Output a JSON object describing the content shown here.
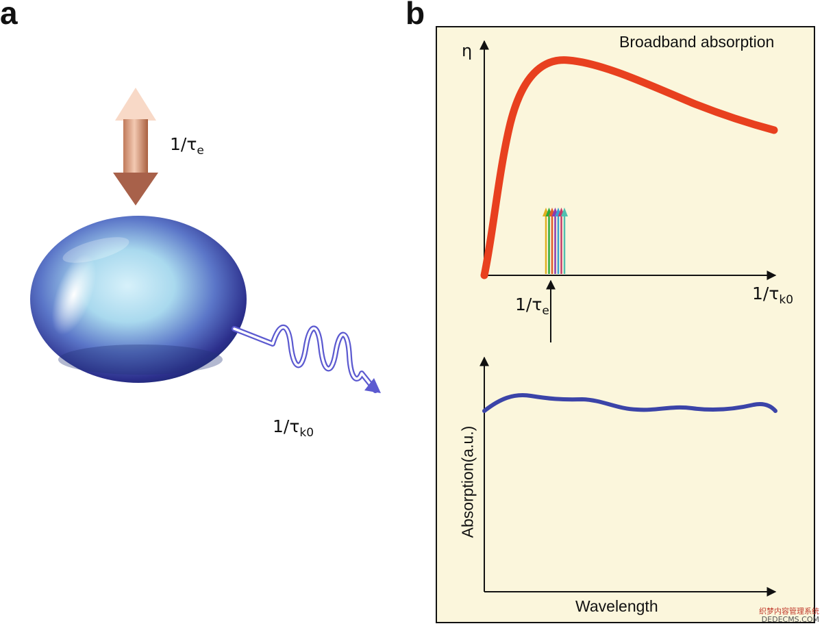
{
  "panel_a": {
    "letter": "a",
    "label_top": {
      "main": "1/τ",
      "sub": "e"
    },
    "label_bottom": {
      "main": "1/τ",
      "sub": "k0"
    },
    "colors": {
      "sphere": "#3a3fa0",
      "arrow": "#c98f73"
    }
  },
  "panel_b": {
    "letter": "b",
    "title": "Broadband absorption",
    "top_chart": {
      "y_label": "η",
      "x_label": {
        "main": "1/τ",
        "sub": "k0"
      },
      "marker_label": {
        "main": "1/τ",
        "sub": "e"
      },
      "curve_color": "#e8401f",
      "arrow_colors": [
        "#e0b020",
        "#2eaa3a",
        "#e05a2a",
        "#8a3bb0",
        "#3aa0d0",
        "#c43a6a",
        "#50c0b0"
      ]
    },
    "bottom_chart": {
      "y_label": "Absorption(a.u.)",
      "x_label": "Wavelength",
      "curve_color": "#3b44a8"
    },
    "background": "#fbf6dc"
  },
  "watermark": {
    "line1": "织梦内容管理系统",
    "line2": "DEDECMS.COM"
  }
}
